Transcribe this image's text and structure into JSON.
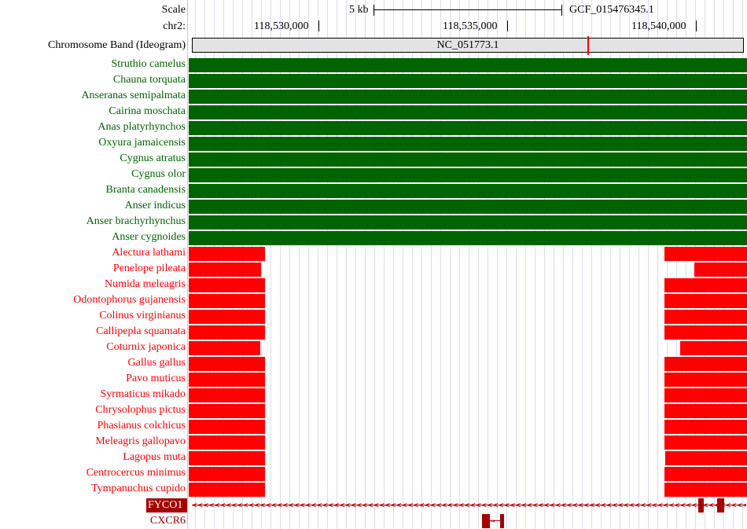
{
  "header": {
    "scale_label": "Scale",
    "scale_value": "5 kb",
    "assembly": "GCF_015476345.1",
    "chrom_label": "chr2:",
    "coords": [
      "118,530,000",
      "118,535,000",
      "118,540,000"
    ],
    "ideogram_label": "Chromosome Band (Ideogram)",
    "ideogram_name": "NC_051773.1"
  },
  "colors": {
    "present": "#006400",
    "absent": "#ff0000",
    "gene": "#a60000",
    "ideogram_marker": "#ff0000"
  },
  "species": [
    {
      "name": "Struthio camelus",
      "status": "green"
    },
    {
      "name": "Chauna torquata",
      "status": "green"
    },
    {
      "name": "Anseranas semipalmata",
      "status": "green"
    },
    {
      "name": "Cairina moschata",
      "status": "green"
    },
    {
      "name": "Anas platyrhynchos",
      "status": "green"
    },
    {
      "name": "Oxyura jamaicensis",
      "status": "green"
    },
    {
      "name": "Cygnus atratus",
      "status": "green"
    },
    {
      "name": "Cygnus olor",
      "status": "green"
    },
    {
      "name": "Branta canadensis",
      "status": "green"
    },
    {
      "name": "Anser indicus",
      "status": "green"
    },
    {
      "name": "Anser brachyrhynchus",
      "status": "green"
    },
    {
      "name": "Anser cygnoides",
      "status": "green"
    },
    {
      "name": "Alectura lathami",
      "status": "red"
    },
    {
      "name": "Penelope pileata",
      "status": "red"
    },
    {
      "name": "Numida meleagris",
      "status": "red"
    },
    {
      "name": "Odontophorus gujanensis",
      "status": "red"
    },
    {
      "name": "Colinus virginianus",
      "status": "red"
    },
    {
      "name": "Callipepla squamata",
      "status": "red"
    },
    {
      "name": "Coturnix japonica",
      "status": "red"
    },
    {
      "name": "Gallus gallus",
      "status": "red"
    },
    {
      "name": "Pavo muticus",
      "status": "red"
    },
    {
      "name": "Syrmaticus mikado",
      "status": "red"
    },
    {
      "name": "Chrysolophus pictus",
      "status": "red"
    },
    {
      "name": "Phasianus colchicus",
      "status": "red"
    },
    {
      "name": "Meleagris gallopavo",
      "status": "red"
    },
    {
      "name": "Lagopus muta",
      "status": "red"
    },
    {
      "name": "Centrocercus minimus",
      "status": "red"
    },
    {
      "name": "Tympanuchus cupido",
      "status": "red"
    }
  ],
  "genes": [
    {
      "name": "FYCO1",
      "strand": "-"
    },
    {
      "name": "CXCR6",
      "strand": "+"
    }
  ]
}
